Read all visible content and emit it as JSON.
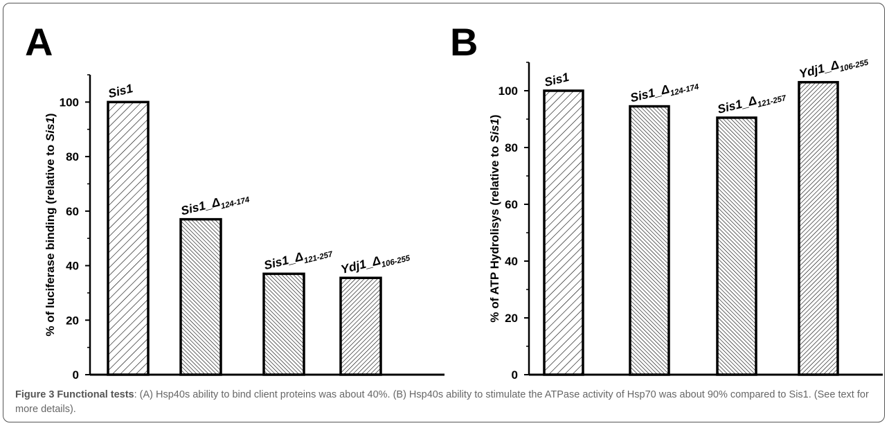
{
  "chart_data": [
    {
      "type": "bar",
      "panel_label": "A",
      "categories": [
        "Sis1",
        "Sis1_Δ124-174",
        "Sis1_Δ121-257",
        "Ydj1_Δ106-255"
      ],
      "category_labels": [
        {
          "base": "Sis1",
          "sub": ""
        },
        {
          "base": "Sis1_Δ",
          "sub": "124-174"
        },
        {
          "base": "Sis1_Δ",
          "sub": "121-257"
        },
        {
          "base": "Ydj1_Δ",
          "sub": "106-255"
        }
      ],
      "values": [
        100,
        57,
        37,
        35.5
      ],
      "ylabel": {
        "pre": "% of luciferase binding (relative to ",
        "ital": "Sis1",
        "post": ")"
      },
      "ylim": [
        0,
        110
      ],
      "yticks": [
        0,
        20,
        40,
        60,
        80,
        100
      ],
      "grid": false,
      "patterns": [
        "sparse-diag-right",
        "dense-diag-left",
        "dense-diag-left",
        "dense-diag-right"
      ]
    },
    {
      "type": "bar",
      "panel_label": "B",
      "categories": [
        "Sis1",
        "Sis1_Δ124-174",
        "Sis1_Δ121-257",
        "Ydj1_Δ106-255"
      ],
      "category_labels": [
        {
          "base": "Sis1",
          "sub": ""
        },
        {
          "base": "Sis1_Δ",
          "sub": "124-174"
        },
        {
          "base": "Sis1_Δ",
          "sub": "121-257"
        },
        {
          "base": "Ydj1_Δ",
          "sub": "106-255"
        }
      ],
      "values": [
        100,
        94.5,
        90.5,
        103
      ],
      "ylabel": {
        "pre": "% of ATP Hydrolisys (relative to ",
        "ital": "Sis1",
        "post": ")"
      },
      "ylim": [
        0,
        110
      ],
      "yticks": [
        0,
        20,
        40,
        60,
        80,
        100
      ],
      "grid": false,
      "patterns": [
        "sparse-diag-right",
        "dense-diag-left",
        "dense-diag-left",
        "dense-diag-right"
      ]
    }
  ],
  "caption": {
    "heading": "Figure 3 Functional tests",
    "text": ": (A) Hsp40s ability to bind client proteins was about 40%. (B) Hsp40s ability to stimulate the ATPase activity of Hsp70 was about 90% compared to Sis1. (See text for more details)."
  },
  "colors": {
    "ink": "#000000",
    "caption": "#666666",
    "frame": "#555555"
  }
}
